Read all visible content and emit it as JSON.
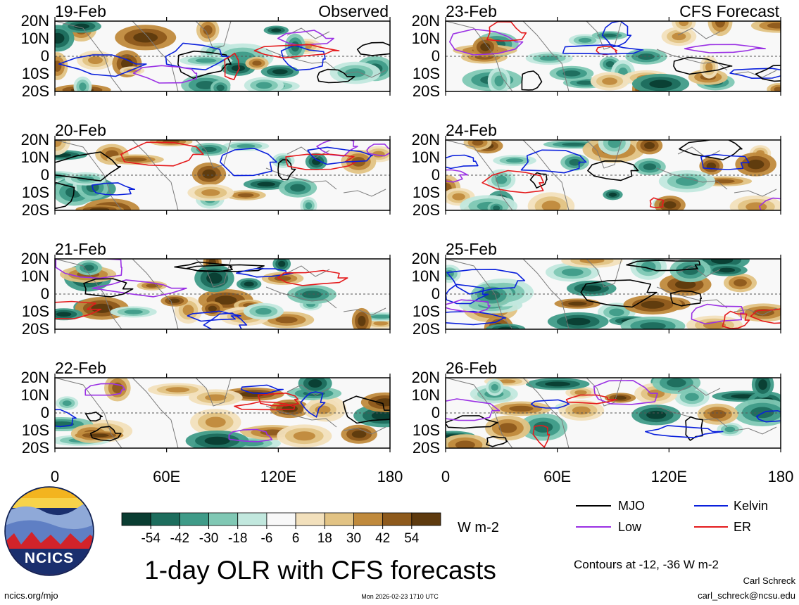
{
  "chart_data": {
    "type": "heatmap",
    "title": "1-day OLR with CFS forecasts",
    "units": "W m-2",
    "contours_note": "Contours at -12, -36 W m-2",
    "x_ticks": [
      "0",
      "60E",
      "120E",
      "180"
    ],
    "y_ticks": [
      "20N",
      "10N",
      "0",
      "10S",
      "20S"
    ],
    "xlim": [
      0,
      180
    ],
    "ylim": [
      -20,
      20
    ],
    "color_scale": {
      "labels": [
        "-54",
        "-42",
        "-30",
        "-18",
        "-6",
        "6",
        "18",
        "30",
        "42",
        "54"
      ],
      "colors": [
        "#0a3d32",
        "#1d6d5d",
        "#3f9b88",
        "#80c8b4",
        "#c2e8de",
        "#f8f8f8",
        "#f2e0bc",
        "#e2c384",
        "#c08a3c",
        "#8e5a1c",
        "#5e3a0e"
      ]
    },
    "legend": [
      {
        "label": "MJO",
        "color": "#000000"
      },
      {
        "label": "Kelvin",
        "color": "#0a20dc"
      },
      {
        "label": "Low",
        "color": "#9a30e4"
      },
      {
        "label": "ER",
        "color": "#e41a1c"
      }
    ],
    "panels": [
      {
        "date": "19-Feb",
        "corner_label": "Observed",
        "column": 0,
        "row": 0
      },
      {
        "date": "20-Feb",
        "corner_label": "",
        "column": 0,
        "row": 1
      },
      {
        "date": "21-Feb",
        "corner_label": "",
        "column": 0,
        "row": 2
      },
      {
        "date": "22-Feb",
        "corner_label": "",
        "column": 0,
        "row": 3
      },
      {
        "date": "23-Feb",
        "corner_label": "CFS Forecast",
        "column": 1,
        "row": 0
      },
      {
        "date": "24-Feb",
        "corner_label": "",
        "column": 1,
        "row": 1
      },
      {
        "date": "25-Feb",
        "corner_label": "",
        "column": 1,
        "row": 2
      },
      {
        "date": "26-Feb",
        "corner_label": "",
        "column": 1,
        "row": 3
      }
    ]
  },
  "footer": {
    "left_url": "ncics.org/mjo",
    "timestamp": "Mon 2026-02-23 1710 UTC",
    "author": "Carl Schreck",
    "email": "carl_schreck@ncsu.edu"
  },
  "logo": {
    "text": "NCICS"
  }
}
